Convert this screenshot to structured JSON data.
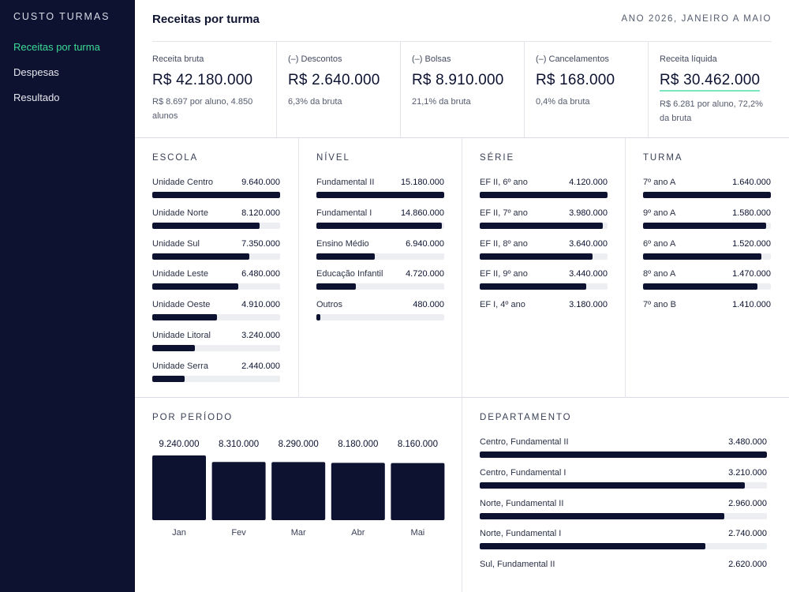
{
  "sidebar": {
    "brand": "CUSTO TURMAS",
    "items": [
      {
        "label": "Receitas por turma",
        "active": true
      },
      {
        "label": "Despesas",
        "active": false
      },
      {
        "label": "Resultado",
        "active": false
      }
    ]
  },
  "header": {
    "title": "Receitas por turma",
    "period": "ANO 2026, JANEIRO A MAIO"
  },
  "kpis": [
    {
      "label": "Receita bruta",
      "value": "R$ 42.180.000",
      "sub": "R$ 8.697 por aluno, 4.850 alunos"
    },
    {
      "label": "(–) Descontos",
      "value": "R$ 2.640.000",
      "sub": "6,3% da bruta"
    },
    {
      "label": "(–) Bolsas",
      "value": "R$ 8.910.000",
      "sub": "21,1% da bruta"
    },
    {
      "label": "(–) Cancelamentos",
      "value": "R$ 168.000",
      "sub": "0,4% da bruta"
    },
    {
      "label": "Receita líquida",
      "value": "R$ 30.462.000",
      "sub": "R$ 6.281 por aluno, 72,2% da bruta"
    }
  ],
  "dimensions": [
    {
      "title": "ESCOLA",
      "items": [
        {
          "label": "Unidade Centro",
          "value": "9.640.000",
          "fraction": 1.0
        },
        {
          "label": "Unidade Norte",
          "value": "8.120.000",
          "fraction": 0.842
        },
        {
          "label": "Unidade Sul",
          "value": "7.350.000",
          "fraction": 0.762
        },
        {
          "label": "Unidade Leste",
          "value": "6.480.000",
          "fraction": 0.672
        },
        {
          "label": "Unidade Oeste",
          "value": "4.910.000",
          "fraction": 0.509
        },
        {
          "label": "Unidade Litoral",
          "value": "3.240.000",
          "fraction": 0.336
        },
        {
          "label": "Unidade Serra",
          "value": "2.440.000",
          "fraction": 0.253
        }
      ]
    },
    {
      "title": "NÍVEL",
      "items": [
        {
          "label": "Fundamental II",
          "value": "15.180.000",
          "fraction": 1.0
        },
        {
          "label": "Fundamental I",
          "value": "14.860.000",
          "fraction": 0.979
        },
        {
          "label": "Ensino Médio",
          "value": "6.940.000",
          "fraction": 0.457
        },
        {
          "label": "Educação Infantil",
          "value": "4.720.000",
          "fraction": 0.311
        },
        {
          "label": "Outros",
          "value": "480.000",
          "fraction": 0.032
        }
      ]
    },
    {
      "title": "SÉRIE",
      "items": [
        {
          "label": "EF II, 6º ano",
          "value": "4.120.000",
          "fraction": 1.0
        },
        {
          "label": "EF II, 7º ano",
          "value": "3.980.000",
          "fraction": 0.966
        },
        {
          "label": "EF II, 8º ano",
          "value": "3.640.000",
          "fraction": 0.883
        },
        {
          "label": "EF II, 9º ano",
          "value": "3.440.000",
          "fraction": 0.835
        },
        {
          "label": "EF I, 4º ano",
          "value": "3.180.000",
          "fraction": null
        }
      ]
    },
    {
      "title": "TURMA",
      "items": [
        {
          "label": "7º ano A",
          "value": "1.640.000",
          "fraction": 1.0
        },
        {
          "label": "9º ano A",
          "value": "1.580.000",
          "fraction": 0.963
        },
        {
          "label": "6º ano A",
          "value": "1.520.000",
          "fraction": 0.927
        },
        {
          "label": "8º ano A",
          "value": "1.470.000",
          "fraction": 0.896
        },
        {
          "label": "7º ano B",
          "value": "1.410.000",
          "fraction": null
        }
      ]
    }
  ],
  "period_section": {
    "title": "POR PERÍODO"
  },
  "chart_data": {
    "type": "bar",
    "categories": [
      "Jan",
      "Fev",
      "Mar",
      "Abr",
      "Mai"
    ],
    "values": [
      9240000,
      8310000,
      8290000,
      8180000,
      8160000
    ],
    "value_labels": [
      "9.240.000",
      "8.310.000",
      "8.290.000",
      "8.180.000",
      "8.160.000"
    ],
    "color": "#0c1230"
  },
  "department": {
    "title": "DEPARTAMENTO",
    "items": [
      {
        "label": "Centro, Fundamental II",
        "value": "3.480.000",
        "fraction": 1.0
      },
      {
        "label": "Centro, Fundamental I",
        "value": "3.210.000",
        "fraction": 0.922
      },
      {
        "label": "Norte, Fundamental II",
        "value": "2.960.000",
        "fraction": 0.851
      },
      {
        "label": "Norte, Fundamental I",
        "value": "2.740.000",
        "fraction": 0.787
      },
      {
        "label": "Sul, Fundamental II",
        "value": "2.620.000",
        "fraction": null
      }
    ]
  },
  "colors": {
    "sidebar_bg": "#0c1230",
    "accent": "#3ddc97",
    "bar": "#0c1230",
    "track": "#eceef2"
  }
}
